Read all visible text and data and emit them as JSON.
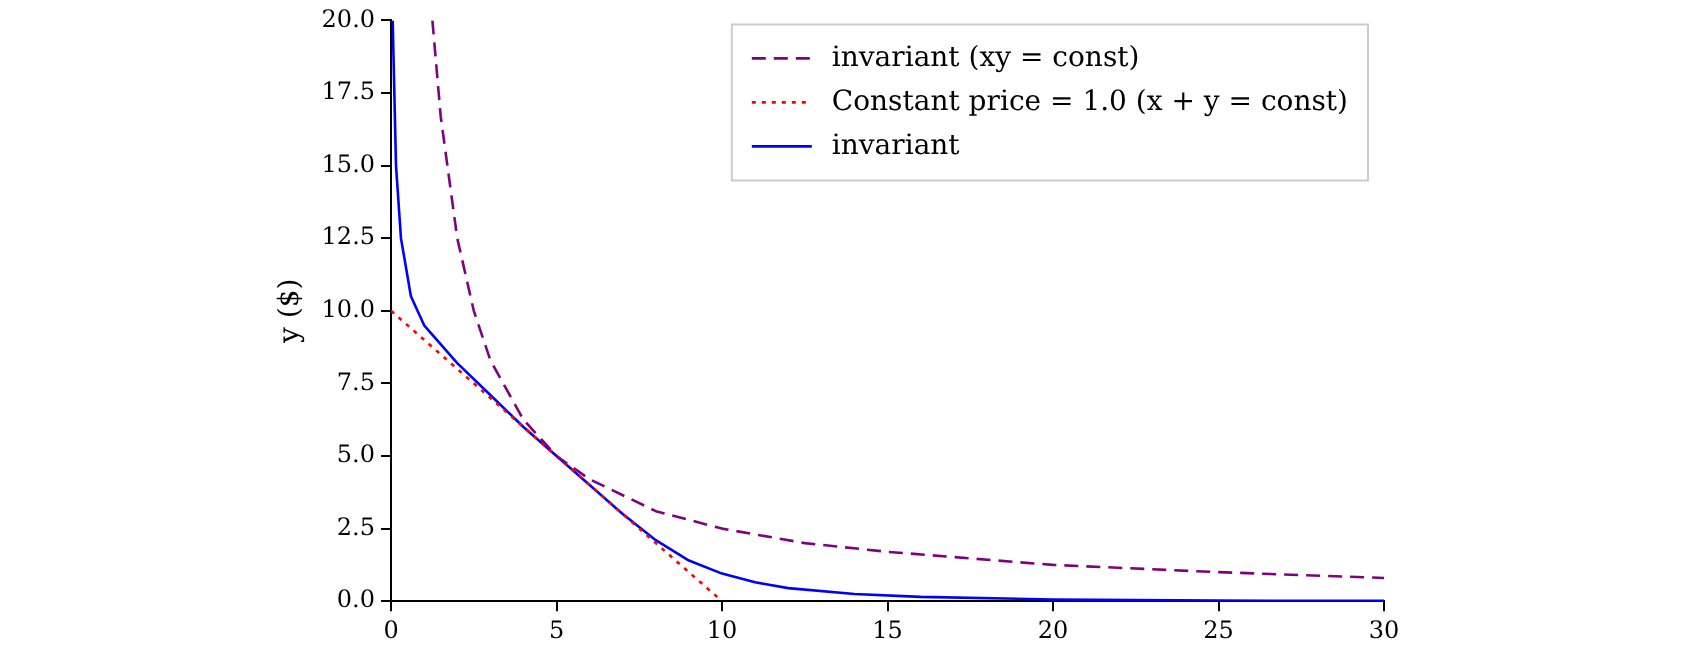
{
  "chart_data": {
    "type": "line",
    "ylabel": "y ($)",
    "xlim": [
      0,
      30
    ],
    "ylim": [
      0,
      20
    ],
    "xticks": [
      0,
      5,
      10,
      15,
      20,
      25,
      30
    ],
    "yticks": [
      {
        "value": 0,
        "label": "0.0"
      },
      {
        "value": 2.5,
        "label": "2.5"
      },
      {
        "value": 5,
        "label": "5.0"
      },
      {
        "value": 7.5,
        "label": "7.5"
      },
      {
        "value": 10,
        "label": "10.0"
      },
      {
        "value": 12.5,
        "label": "12.5"
      },
      {
        "value": 15,
        "label": "15.0"
      },
      {
        "value": 17.5,
        "label": "17.5"
      },
      {
        "value": 20,
        "label": "20.0"
      }
    ],
    "grid": false,
    "legend": "top right",
    "marker": "none",
    "series": [
      {
        "name": "invariant (xy = const)",
        "color": "#800080",
        "line_style": "dashed",
        "x": [
          1.25,
          1.5,
          2,
          2.5,
          3,
          4,
          5,
          6,
          8,
          10,
          12.5,
          15,
          20,
          25,
          30
        ],
        "values": [
          20,
          16.7,
          12.5,
          10,
          8.3,
          6.25,
          5,
          4.2,
          3.1,
          2.5,
          2,
          1.7,
          1.25,
          1,
          0.8
        ]
      },
      {
        "name": "Constant price = 1.0 (x + y = const)",
        "color": "#ff0000",
        "line_style": "dotted",
        "x": [
          0,
          10
        ],
        "values": [
          10,
          0
        ]
      },
      {
        "name": "invariant",
        "color": "#0000ff",
        "line_style": "solid",
        "x": [
          0.05,
          0.15,
          0.3,
          0.6,
          1,
          2,
          3,
          4,
          5,
          6,
          7,
          8,
          9,
          10,
          11,
          12,
          14,
          16,
          20,
          25,
          30
        ],
        "values": [
          20,
          15,
          12.5,
          10.5,
          9.5,
          8.2,
          7.1,
          6,
          5,
          4,
          3,
          2.1,
          1.4,
          0.95,
          0.65,
          0.45,
          0.25,
          0.15,
          0.06,
          0.02,
          0.01
        ]
      }
    ]
  }
}
